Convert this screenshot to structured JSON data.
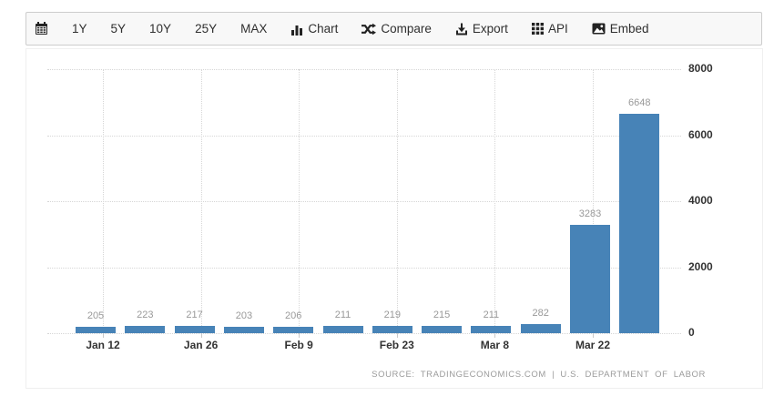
{
  "toolbar": {
    "range_buttons": [
      "1Y",
      "5Y",
      "10Y",
      "25Y",
      "MAX"
    ],
    "chart_label": "Chart",
    "compare_label": "Compare",
    "export_label": "Export",
    "api_label": "API",
    "embed_label": "Embed"
  },
  "chart_data": {
    "type": "bar",
    "title": "",
    "values": [
      205,
      223,
      217,
      203,
      206,
      211,
      219,
      215,
      211,
      282,
      3283,
      6648
    ],
    "bar_labels": [
      "205",
      "223",
      "217",
      "203",
      "206",
      "211",
      "219",
      "215",
      "211",
      "282",
      "3283",
      "6648"
    ],
    "x_tick_labels": [
      "Jan 12",
      "Jan 26",
      "Feb 9",
      "Feb 23",
      "Mar 8",
      "Mar 22"
    ],
    "y_tick_labels": [
      "0",
      "2000",
      "4000",
      "6000",
      "8000"
    ],
    "ylim": [
      0,
      8000
    ],
    "grid": "dotted",
    "legend": "none",
    "bar_color": "#4783b7",
    "value_label_color": "#999999",
    "source_text": "SOURCE:  TRADINGECONOMICS.COM  |  U.S.  DEPARTMENT  OF  LABOR"
  }
}
